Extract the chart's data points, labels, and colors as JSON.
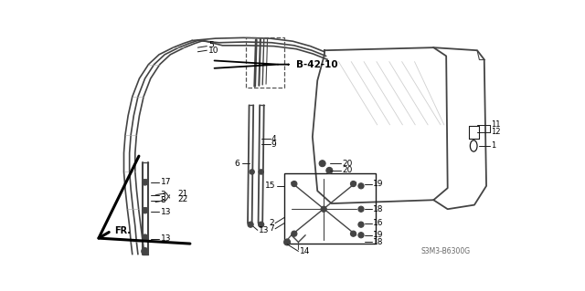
{
  "bg_color": "#ffffff",
  "diagram_code": "S3M3-B6300G",
  "lc": "#1a1a1a",
  "sc": "#444444",
  "gray": "#888888",
  "lgray": "#bbbbbb"
}
